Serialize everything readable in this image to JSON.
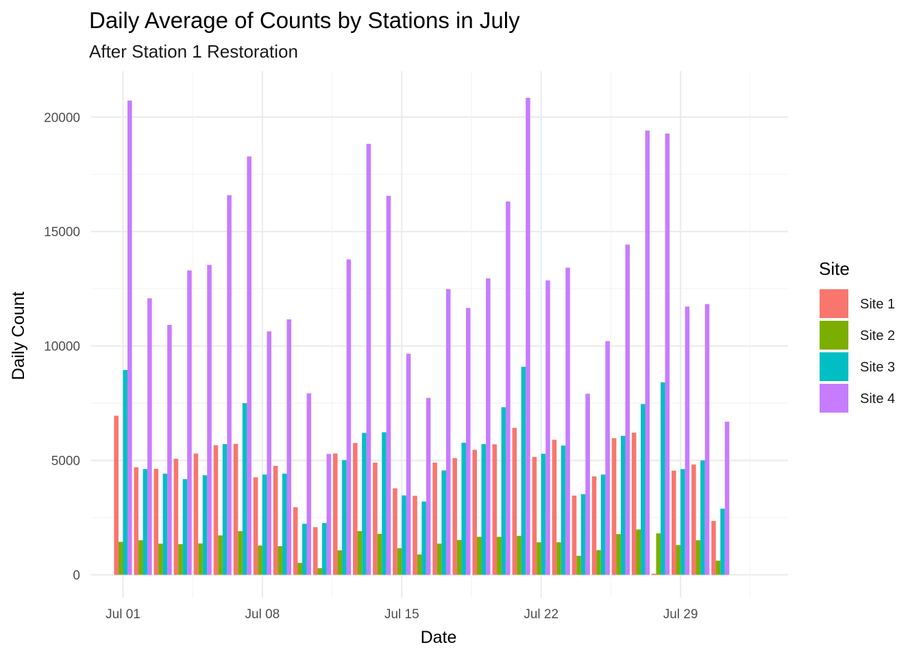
{
  "chart_data": {
    "type": "bar",
    "title": "Daily Average of Counts by Stations in July",
    "subtitle": "After Station 1 Restoration",
    "xlabel": "Date",
    "ylabel": "Daily Count",
    "ylim": [
      -1000,
      22000
    ],
    "y_ticks": [
      0,
      5000,
      10000,
      15000,
      20000
    ],
    "y_tick_labels": [
      "0",
      "5000",
      "10000",
      "15000",
      "20000"
    ],
    "x_domain_days": [
      -1.6,
      33.4
    ],
    "x_tick_days": [
      0,
      7,
      14,
      21,
      28
    ],
    "x_tick_labels": [
      "Jul 01",
      "Jul 08",
      "Jul 15",
      "Jul 22",
      "Jul 29"
    ],
    "grid": true,
    "legend": {
      "title": "Site",
      "position": "right"
    },
    "categories": [
      "Jul 01",
      "Jul 02",
      "Jul 03",
      "Jul 04",
      "Jul 05",
      "Jul 06",
      "Jul 07",
      "Jul 08",
      "Jul 09",
      "Jul 10",
      "Jul 11",
      "Jul 12",
      "Jul 13",
      "Jul 14",
      "Jul 15",
      "Jul 16",
      "Jul 17",
      "Jul 18",
      "Jul 19",
      "Jul 20",
      "Jul 21",
      "Jul 22",
      "Jul 23",
      "Jul 24",
      "Jul 25",
      "Jul 26",
      "Jul 27",
      "Jul 28",
      "Jul 29",
      "Jul 30",
      "Jul 31"
    ],
    "series": [
      {
        "name": "Site 1",
        "color": "#F8766D",
        "values": [
          6950,
          4700,
          4630,
          5070,
          5300,
          5660,
          5720,
          4260,
          4760,
          2950,
          2080,
          5300,
          5760,
          4900,
          3780,
          3450,
          4900,
          5100,
          5460,
          5700,
          6420,
          5150,
          5900,
          3460,
          4300,
          5970,
          6210,
          50,
          4550,
          4820,
          2350
        ]
      },
      {
        "name": "Site 2",
        "color": "#7CAE00",
        "values": [
          1440,
          1510,
          1360,
          1340,
          1370,
          1720,
          1910,
          1280,
          1250,
          520,
          290,
          1070,
          1910,
          1790,
          1160,
          890,
          1360,
          1520,
          1660,
          1660,
          1700,
          1420,
          1420,
          830,
          1080,
          1780,
          1980,
          1810,
          1300,
          1510,
          620
        ]
      },
      {
        "name": "Site 3",
        "color": "#00BFC4",
        "values": [
          8950,
          4620,
          4420,
          4180,
          4350,
          5710,
          7500,
          4380,
          4420,
          2230,
          2260,
          5010,
          6200,
          6230,
          3470,
          3200,
          4560,
          5770,
          5710,
          7320,
          9090,
          5290,
          5650,
          3520,
          4380,
          6070,
          7460,
          8410,
          4620,
          5000,
          2890
        ]
      },
      {
        "name": "Site 4",
        "color": "#C77CFF",
        "values": [
          20720,
          12080,
          10920,
          13300,
          13540,
          16590,
          18280,
          10640,
          11160,
          7930,
          5280,
          13780,
          18830,
          16560,
          9660,
          7730,
          12480,
          11660,
          12950,
          16310,
          20840,
          12860,
          13420,
          7910,
          10210,
          14430,
          19410,
          19280,
          11720,
          11830,
          6690
        ]
      }
    ]
  }
}
